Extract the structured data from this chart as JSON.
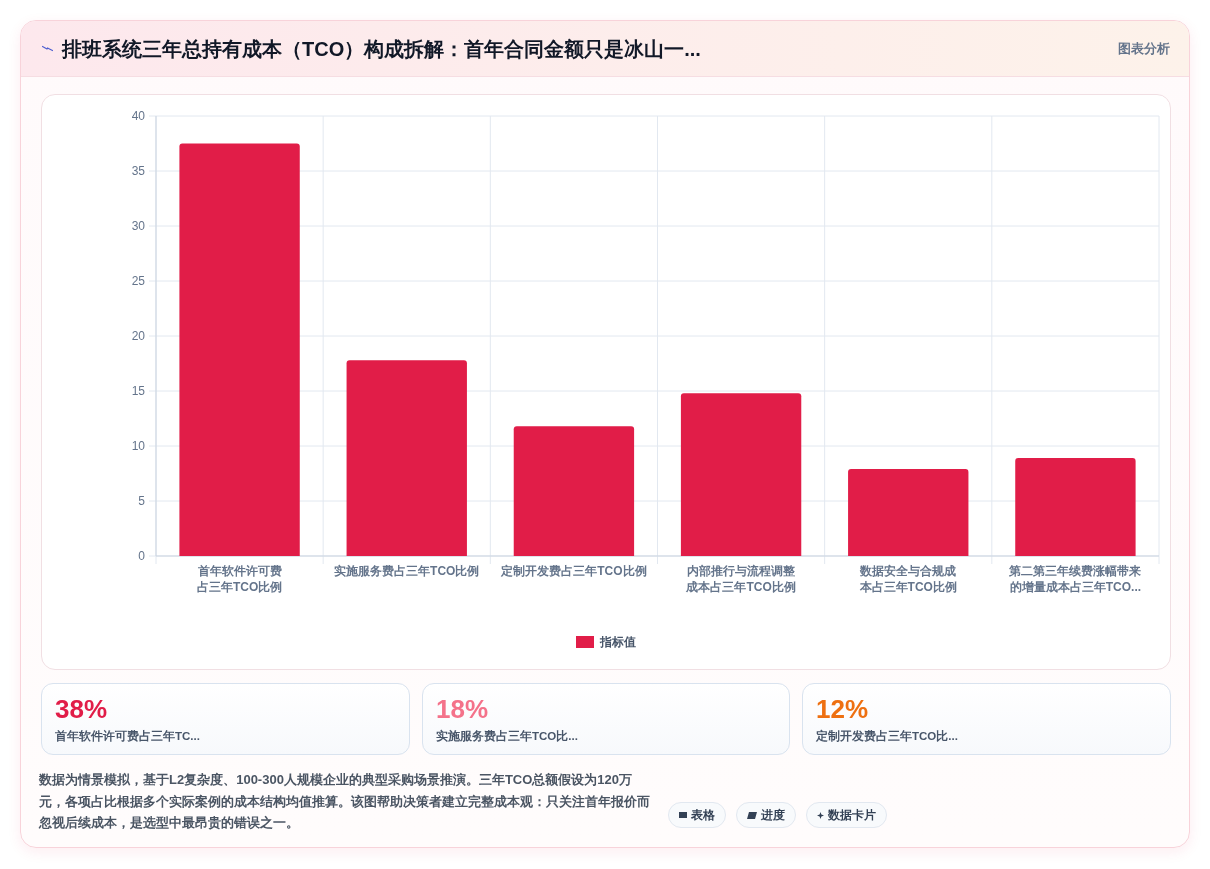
{
  "chart_data": [
    {
      "type": "bar",
      "title": "排班系统三年总持有成本（TCO）构成拆解：首年合同金额只是冰山一...",
      "subtitle": "图表分析",
      "categories": [
        "首年软件许可费占三年TCO比例",
        "实施服务费占三年TCO比例",
        "定制开发费占三年TCO比例",
        "内部推行与流程调整成本占三年TCO比例",
        "数据安全与合规成本占三年TCO比例",
        "第二第三年续费涨幅带来的增量成本占三年TCO..."
      ],
      "series": [
        {
          "name": "指标值",
          "color": "#e11d48",
          "values": [
            37.5,
            17.8,
            11.8,
            14.8,
            7.9,
            8.9
          ]
        }
      ],
      "ylim": [
        0,
        40
      ],
      "yticks": [
        0,
        5,
        10,
        15,
        20,
        25,
        30,
        35,
        40
      ],
      "grid": true,
      "legend": "bottom",
      "annotations": [
        "数据为情景模拟，基于L2复杂度、100-300人规模企业的典型采购场景推演。三年TCO总额假设为120万元，各项占比根据多个实际案例的成本结构均值推算。该图帮助决策者建立完整成本观：只关注首年报价而忽视后续成本，是选型中最昂贵的错误之一。",
        "表格",
        "进度",
        "数据卡片"
      ]
    },
    {
      "type": "other",
      "title": "38%",
      "subtitle": "首年软件许可费占三年TC...",
      "color": "#e11d48"
    },
    {
      "type": "other",
      "title": "18%",
      "subtitle": "实施服务费占三年TCO比...",
      "color": "#f4728a"
    },
    {
      "type": "other",
      "title": "12%",
      "subtitle": "定制开发费占三年TCO比...",
      "color": "#ee7011"
    }
  ]
}
